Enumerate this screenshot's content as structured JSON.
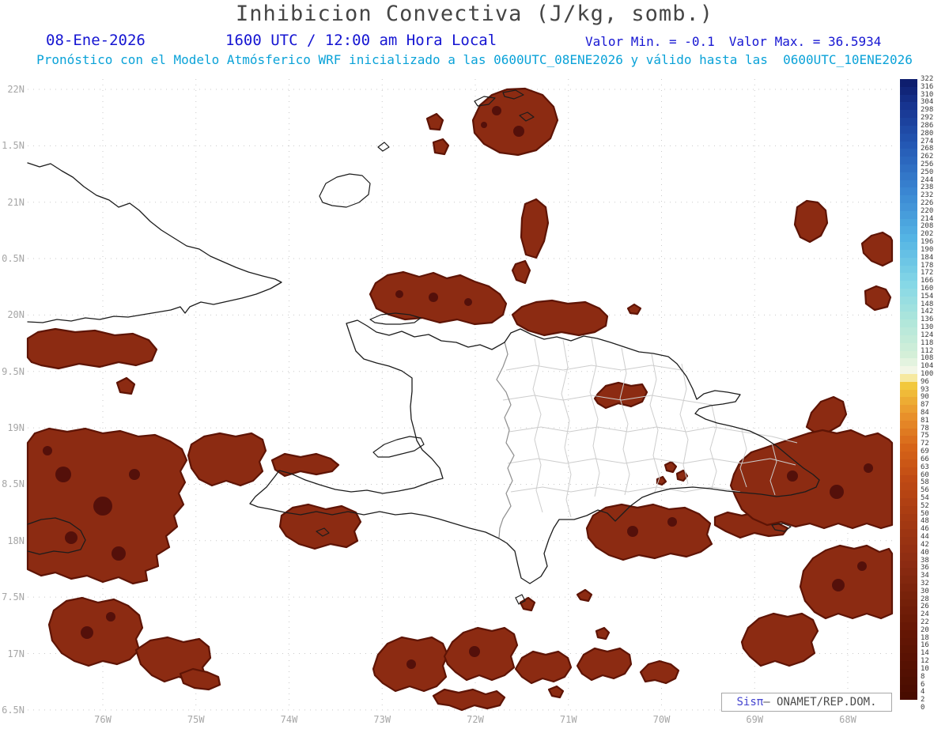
{
  "header": {
    "title": "Inhibicion Convectiva (J/kg, somb.)",
    "date": "08-Ene-2026",
    "time": "1600 UTC / 12:00 am Hora Local",
    "min": "Valor Min. = -0.1",
    "max": "Valor Max. = 36.5934",
    "forecast": "Pronóstico con el Modelo Atmósferico WRF inicializado a las 0600UTC_08ENE2026 y válido hasta las  0600UTC_10ENE2026"
  },
  "map": {
    "lat_labels": [
      "22N",
      "1.5N",
      "21N",
      "0.5N",
      "20N",
      "9.5N",
      "19N",
      "8.5N",
      "18N",
      "7.5N",
      "17N",
      "6.5N"
    ],
    "lon_labels": [
      "76W",
      "75W",
      "74W",
      "73W",
      "72W",
      "71W",
      "70W",
      "69W",
      "68W"
    ],
    "cin_fill": "#8c2b12",
    "cin_edge": "#5e1405",
    "cin_dark": "#54100a"
  },
  "colorbar": {
    "units": "J/kg",
    "ticks": [
      322,
      316,
      310,
      304,
      298,
      292,
      286,
      280,
      274,
      268,
      262,
      256,
      250,
      244,
      238,
      232,
      226,
      220,
      214,
      208,
      202,
      196,
      190,
      184,
      178,
      172,
      166,
      160,
      154,
      148,
      142,
      136,
      130,
      124,
      118,
      112,
      108,
      104,
      100,
      96,
      93,
      90,
      87,
      84,
      81,
      78,
      75,
      72,
      69,
      66,
      63,
      60,
      58,
      56,
      54,
      52,
      50,
      48,
      46,
      44,
      42,
      40,
      38,
      36,
      34,
      32,
      30,
      28,
      26,
      24,
      22,
      20,
      18,
      16,
      14,
      12,
      10,
      8,
      6,
      4,
      2,
      0
    ],
    "stops": [
      {
        "i": 0,
        "c": "#ffffff"
      },
      {
        "i": 1,
        "c": "#480c00"
      },
      {
        "i": 9,
        "c": "#641604"
      },
      {
        "i": 14,
        "c": "#78220a"
      },
      {
        "i": 18,
        "c": "#8c2b12"
      },
      {
        "i": 24,
        "c": "#a63a12"
      },
      {
        "i": 29,
        "c": "#c04a14"
      },
      {
        "i": 33,
        "c": "#d66418"
      },
      {
        "i": 37,
        "c": "#e8902a"
      },
      {
        "i": 41,
        "c": "#f2c83c"
      },
      {
        "i": 42,
        "c": "#f6e9a0"
      },
      {
        "i": 43,
        "c": "#f2f6e6"
      },
      {
        "i": 45,
        "c": "#d4efd8"
      },
      {
        "i": 49,
        "c": "#b2e7da"
      },
      {
        "i": 54,
        "c": "#86d8e6"
      },
      {
        "i": 60,
        "c": "#54b4e4"
      },
      {
        "i": 66,
        "c": "#3a86d2"
      },
      {
        "i": 72,
        "c": "#2458b4"
      },
      {
        "i": 77,
        "c": "#173490"
      },
      {
        "i": 80,
        "c": "#0e1e6e"
      }
    ]
  },
  "credit": {
    "brand": "Sisπ",
    "text": "— ONAMET/REP.DOM."
  }
}
